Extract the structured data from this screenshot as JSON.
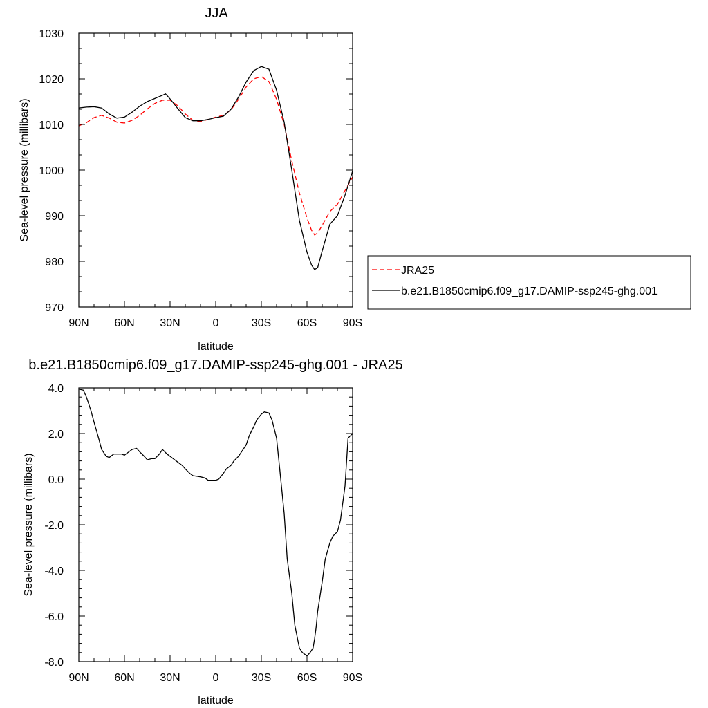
{
  "chart_data": [
    {
      "type": "line",
      "title": "JJA",
      "xlabel": "latitude",
      "ylabel": "Sea-level pressure (millibars)",
      "xlim": [
        90,
        -90
      ],
      "ylim": [
        970,
        1030
      ],
      "x_ticks": [
        90,
        60,
        30,
        0,
        -30,
        -60,
        -90
      ],
      "x_tick_labels": [
        "90N",
        "60N",
        "30N",
        "0",
        "30S",
        "60S",
        "90S"
      ],
      "y_ticks": [
        970,
        980,
        990,
        1000,
        1010,
        1020,
        1030
      ],
      "y_tick_labels": [
        "970",
        "980",
        "990",
        "1000",
        "1010",
        "1020",
        "1030"
      ],
      "grid": false,
      "legend_position": "right",
      "series": [
        {
          "name": "JRA25",
          "color": "#ff0000",
          "dash": "dashed",
          "x": [
            90,
            85,
            80,
            75,
            70,
            65,
            60,
            55,
            50,
            45,
            40,
            35,
            30,
            25,
            20,
            15,
            10,
            5,
            0,
            -5,
            -10,
            -15,
            -20,
            -25,
            -30,
            -35,
            -40,
            -45,
            -50,
            -55,
            -60,
            -63,
            -65,
            -67,
            -70,
            -75,
            -80,
            -85,
            -90
          ],
          "values": [
            1009.7,
            1010.4,
            1011.5,
            1012.0,
            1011.4,
            1010.5,
            1010.3,
            1010.9,
            1012.0,
            1013.4,
            1014.6,
            1015.3,
            1015.3,
            1014.1,
            1012.3,
            1010.9,
            1010.6,
            1011.1,
            1011.6,
            1012.0,
            1013.2,
            1015.5,
            1018.2,
            1020.0,
            1020.5,
            1019.4,
            1015.5,
            1010.0,
            1002.0,
            995.0,
            989.5,
            986.8,
            985.8,
            986.2,
            987.9,
            990.9,
            992.5,
            995.5,
            998.5
          ]
        },
        {
          "name": "b.e21.B1850cmip6.f09_g17.DAMIP-ssp245-ghg.001",
          "color": "#000000",
          "dash": "solid",
          "x": [
            90,
            85,
            80,
            75,
            70,
            65,
            60,
            55,
            50,
            45,
            40,
            35,
            33,
            30,
            25,
            20,
            15,
            10,
            5,
            0,
            -5,
            -10,
            -15,
            -20,
            -25,
            -30,
            -35,
            -40,
            -45,
            -50,
            -55,
            -60,
            -63,
            -65,
            -67,
            -70,
            -75,
            -80,
            -85,
            -90
          ],
          "values": [
            1013.6,
            1013.8,
            1013.9,
            1013.6,
            1012.3,
            1011.4,
            1011.6,
            1012.7,
            1014.0,
            1015.0,
            1015.7,
            1016.4,
            1016.7,
            1015.6,
            1013.5,
            1011.5,
            1010.8,
            1010.8,
            1011.1,
            1011.5,
            1011.8,
            1013.3,
            1016.0,
            1019.3,
            1021.8,
            1022.7,
            1022.1,
            1017.5,
            1010.5,
            1000.0,
            989.0,
            982.0,
            979.2,
            978.2,
            978.6,
            982.3,
            988.1,
            990.0,
            994.5,
            999.8
          ]
        }
      ]
    },
    {
      "type": "line",
      "title": "b.e21.B1850cmip6.f09_g17.DAMIP-ssp245-ghg.001 - JRA25",
      "xlabel": "latitude",
      "ylabel": "Sea-level pressure (millibars)",
      "xlim": [
        90,
        -90
      ],
      "ylim": [
        -8,
        4
      ],
      "x_ticks": [
        90,
        60,
        30,
        0,
        -30,
        -60,
        -90
      ],
      "x_tick_labels": [
        "90N",
        "60N",
        "30N",
        "0",
        "30S",
        "60S",
        "90S"
      ],
      "y_ticks": [
        4,
        2,
        0,
        -2,
        -4,
        -6,
        -8
      ],
      "y_tick_labels": [
        "4.0",
        "2.0",
        "0.0",
        "-2.0",
        "-4.0",
        "-6.0",
        "-8.0"
      ],
      "grid": false,
      "series": [
        {
          "color": "#000000",
          "dash": "solid",
          "x": [
            90,
            87,
            85,
            82,
            80,
            77,
            75,
            72,
            70,
            67,
            65,
            62,
            60,
            57,
            55,
            52,
            50,
            47,
            45,
            42,
            40,
            37,
            35,
            32,
            30,
            27,
            25,
            22,
            20,
            17,
            15,
            12,
            10,
            7,
            5,
            2,
            0,
            -2,
            -5,
            -7,
            -10,
            -12,
            -15,
            -17,
            -20,
            -22,
            -25,
            -27,
            -30,
            -32,
            -35,
            -37,
            -40,
            -42,
            -45,
            -47,
            -50,
            -52,
            -55,
            -57,
            -60,
            -62,
            -64,
            -65,
            -66,
            -67,
            -70,
            -72,
            -75,
            -77,
            -80,
            -82,
            -85,
            -87,
            -90
          ],
          "values": [
            3.95,
            3.9,
            3.6,
            3.0,
            2.5,
            1.8,
            1.3,
            1.0,
            0.95,
            1.1,
            1.1,
            1.1,
            1.05,
            1.2,
            1.3,
            1.35,
            1.2,
            1.0,
            0.85,
            0.9,
            0.9,
            1.1,
            1.3,
            1.1,
            1.0,
            0.85,
            0.75,
            0.6,
            0.45,
            0.25,
            0.15,
            0.12,
            0.1,
            0.05,
            -0.05,
            -0.05,
            -0.05,
            0.0,
            0.25,
            0.45,
            0.6,
            0.8,
            1.0,
            1.2,
            1.5,
            1.9,
            2.3,
            2.6,
            2.85,
            2.95,
            2.9,
            2.6,
            1.8,
            0.5,
            -1.5,
            -3.5,
            -5.0,
            -6.4,
            -7.4,
            -7.6,
            -7.75,
            -7.6,
            -7.4,
            -7.0,
            -6.5,
            -5.8,
            -4.5,
            -3.5,
            -2.8,
            -2.5,
            -2.3,
            -1.8,
            -0.3,
            1.8,
            2.0
          ]
        }
      ]
    }
  ]
}
